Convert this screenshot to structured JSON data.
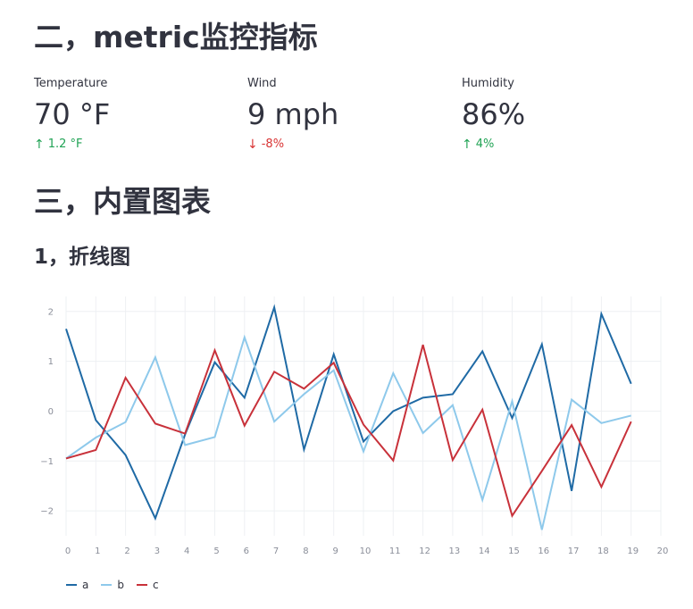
{
  "sections": {
    "metrics_title": "二，metric监控指标",
    "charts_title": "三，内置图表",
    "line_title": "1，折线图"
  },
  "metrics": [
    {
      "label": "Temperature",
      "value": "70 °F",
      "delta": "1.2 °F",
      "direction": "up",
      "arrow": "↑",
      "color": "#21a355"
    },
    {
      "label": "Wind",
      "value": "9 mph",
      "delta": "-8%",
      "direction": "down",
      "arrow": "↓",
      "color": "#d93434"
    },
    {
      "label": "Humidity",
      "value": "86%",
      "delta": "4%",
      "direction": "up",
      "arrow": "↑",
      "color": "#21a355"
    }
  ],
  "chart_data": {
    "type": "line",
    "x": [
      0,
      1,
      2,
      3,
      4,
      5,
      6,
      7,
      8,
      9,
      10,
      11,
      12,
      13,
      14,
      15,
      16,
      17,
      18,
      19
    ],
    "xticks": [
      0,
      1,
      2,
      3,
      4,
      5,
      6,
      7,
      8,
      9,
      10,
      11,
      12,
      13,
      14,
      15,
      16,
      17,
      18,
      19,
      20
    ],
    "yticks": [
      -2,
      -1,
      0,
      1,
      2
    ],
    "ytick_labels": [
      "−2",
      "−1",
      "0",
      "1",
      "2"
    ],
    "xlim": [
      0,
      20
    ],
    "ylim": [
      -2.5,
      2.3
    ],
    "grid": true,
    "legend_position": "bottom-left",
    "series": [
      {
        "name": "a",
        "color": "#1f6aa5",
        "values": [
          1.65,
          -0.18,
          -0.88,
          -2.15,
          -0.47,
          0.98,
          0.27,
          2.08,
          -0.77,
          1.14,
          -0.61,
          0.0,
          0.27,
          0.34,
          1.2,
          -0.14,
          1.34,
          -1.6,
          1.95,
          0.55
        ]
      },
      {
        "name": "b",
        "color": "#8ec9eb",
        "values": [
          -0.95,
          -0.53,
          -0.22,
          1.08,
          -0.68,
          -0.52,
          1.48,
          -0.21,
          0.34,
          0.82,
          -0.81,
          0.76,
          -0.44,
          0.12,
          -1.78,
          0.2,
          -2.38,
          0.23,
          -0.24,
          -0.09
        ]
      },
      {
        "name": "c",
        "color": "#c8313a",
        "values": [
          -0.95,
          -0.78,
          0.67,
          -0.25,
          -0.45,
          1.22,
          -0.29,
          0.79,
          0.45,
          0.97,
          -0.27,
          -0.99,
          1.33,
          -0.98,
          0.03,
          -2.1,
          -1.2,
          -0.28,
          -1.52,
          -0.21
        ]
      }
    ]
  }
}
